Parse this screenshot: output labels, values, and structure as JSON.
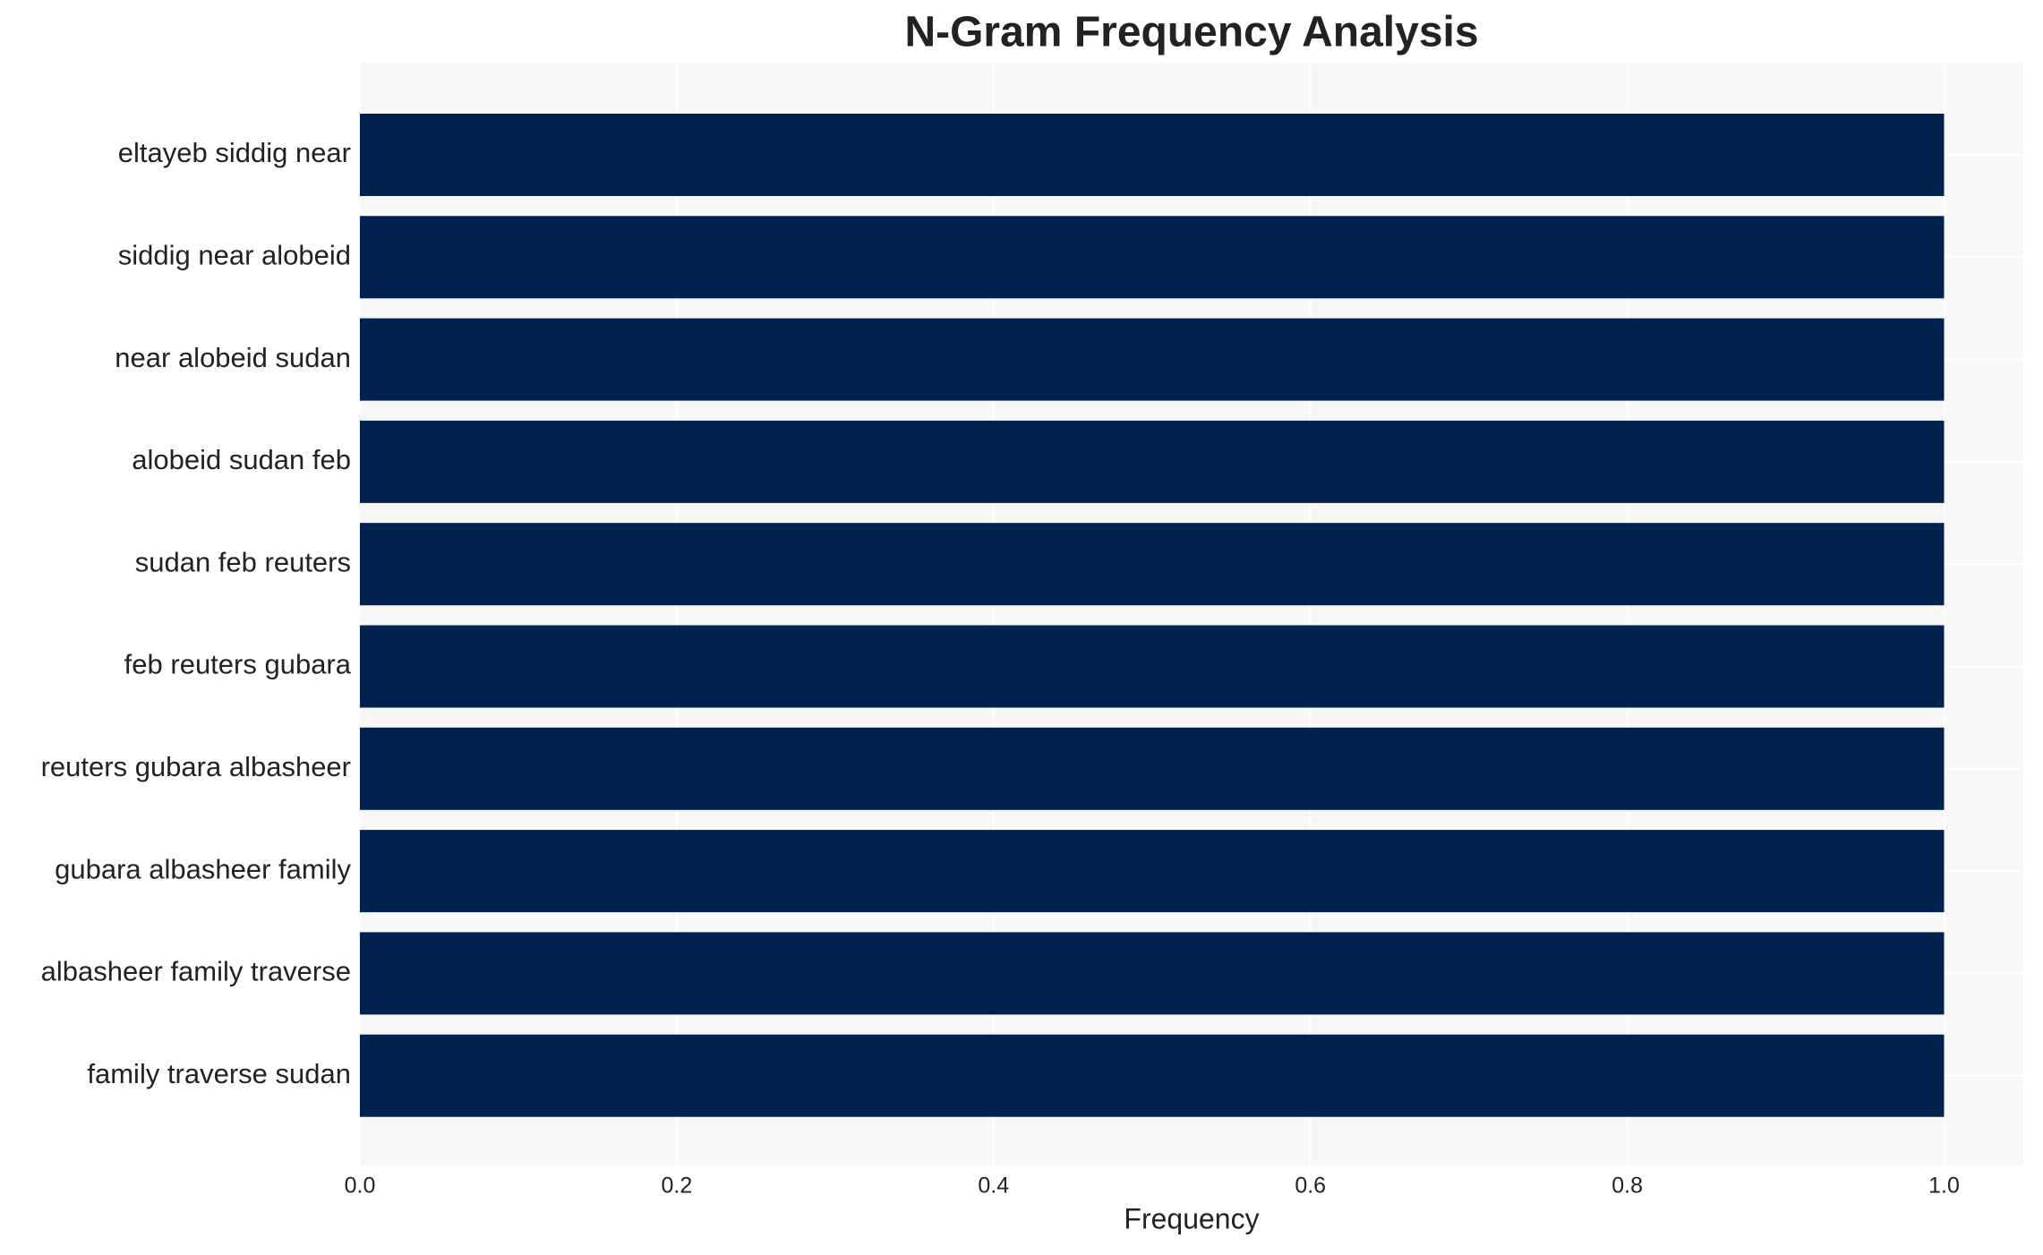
{
  "chart_data": {
    "type": "barh",
    "title": "N-Gram Frequency Analysis",
    "xlabel": "Frequency",
    "categories": [
      "eltayeb siddig near",
      "siddig near alobeid",
      "near alobeid sudan",
      "alobeid sudan feb",
      "sudan feb reuters",
      "feb reuters gubara",
      "reuters gubara albasheer",
      "gubara albasheer family",
      "albasheer family traverse",
      "family traverse sudan"
    ],
    "values": [
      1,
      1,
      1,
      1,
      1,
      1,
      1,
      1,
      1,
      1
    ],
    "color": "#00224e",
    "xlim": [
      0,
      1.05
    ],
    "xticks": [
      {
        "value": 0,
        "label": "0.0"
      },
      0.2,
      0.4,
      0.6,
      0.8,
      {
        "value": 1,
        "label": "1.0"
      }
    ],
    "grid": true
  }
}
